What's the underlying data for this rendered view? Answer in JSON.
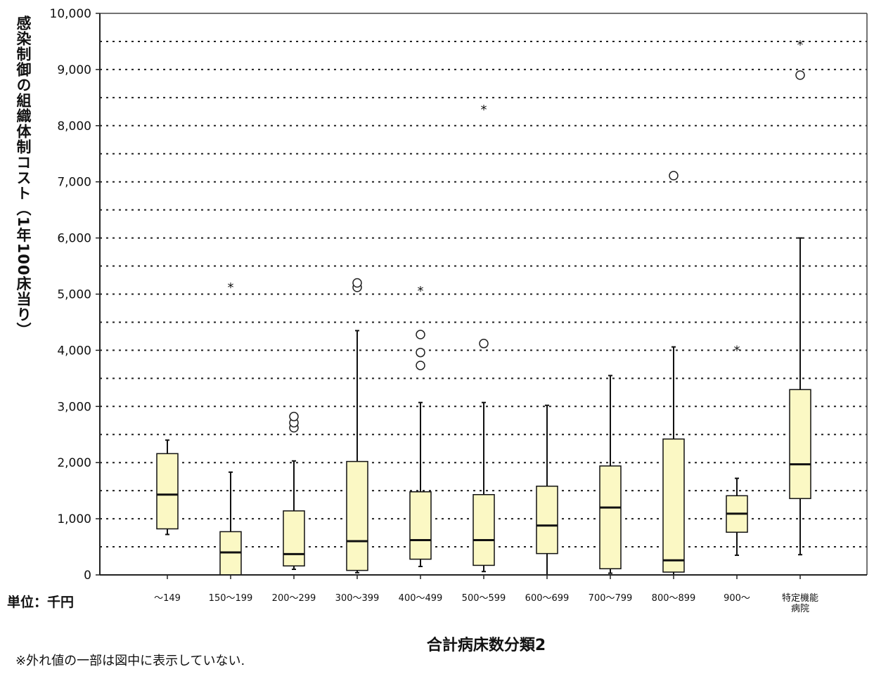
{
  "chart_data": {
    "type": "box",
    "ylabel": "感染制御の組織体制コスト（1年100床当り）",
    "xlabel": "合計病床数分類2",
    "unit_label": "単位：千円",
    "footnote": "※外れ値の一部は図中に表示していない.",
    "ylim": [
      0,
      10000
    ],
    "y_ticks": [
      "0",
      "1,000",
      "2,000",
      "3,000",
      "4,000",
      "5,000",
      "6,000",
      "7,000",
      "8,000",
      "9,000",
      "10,000"
    ],
    "y_tick_values": [
      0,
      1000,
      2000,
      3000,
      4000,
      5000,
      6000,
      7000,
      8000,
      9000,
      10000
    ],
    "grid": "dotted, every 500",
    "box_fill": "#fbf8c4",
    "categories": [
      [
        "～149"
      ],
      [
        "150～199"
      ],
      [
        "200～299"
      ],
      [
        "300～399"
      ],
      [
        "400～499"
      ],
      [
        "500～599"
      ],
      [
        "600～699"
      ],
      [
        "700～799"
      ],
      [
        "800～899"
      ],
      [
        "900～"
      ],
      [
        "特定機能",
        "病院"
      ]
    ],
    "boxes": [
      {
        "whisker_low": 720,
        "q1": 820,
        "median": 1430,
        "q3": 2160,
        "whisker_high": 2400,
        "outliers": [],
        "extremes": []
      },
      {
        "whisker_low": 0,
        "q1": 0,
        "median": 400,
        "q3": 770,
        "whisker_high": 1830,
        "outliers": [],
        "extremes": [
          5130
        ]
      },
      {
        "whisker_low": 100,
        "q1": 160,
        "median": 370,
        "q3": 1140,
        "whisker_high": 2030,
        "outliers": [
          2620,
          2710,
          2820
        ],
        "extremes": []
      },
      {
        "whisker_low": 40,
        "q1": 80,
        "median": 600,
        "q3": 2020,
        "whisker_high": 4350,
        "outliers": [
          5120,
          5200
        ],
        "extremes": []
      },
      {
        "whisker_low": 150,
        "q1": 280,
        "median": 620,
        "q3": 1480,
        "whisker_high": 3070,
        "outliers": [
          3730,
          3960,
          4280
        ],
        "extremes": [
          5070
        ]
      },
      {
        "whisker_low": 60,
        "q1": 170,
        "median": 620,
        "q3": 1430,
        "whisker_high": 3070,
        "outliers": [
          4120
        ],
        "extremes": [
          8300
        ]
      },
      {
        "whisker_low": 0,
        "q1": 380,
        "median": 880,
        "q3": 1580,
        "whisker_high": 3020,
        "outliers": [],
        "extremes": []
      },
      {
        "whisker_low": 30,
        "q1": 110,
        "median": 1200,
        "q3": 1940,
        "whisker_high": 3550,
        "outliers": [],
        "extremes": []
      },
      {
        "whisker_low": 0,
        "q1": 50,
        "median": 260,
        "q3": 2420,
        "whisker_high": 4060,
        "outliers": [
          7110
        ],
        "extremes": []
      },
      {
        "whisker_low": 350,
        "q1": 760,
        "median": 1090,
        "q3": 1410,
        "whisker_high": 1720,
        "outliers": [],
        "extremes": [
          4010
        ]
      },
      {
        "whisker_low": 360,
        "q1": 1360,
        "median": 1970,
        "q3": 3300,
        "whisker_high": 6000,
        "outliers": [
          8900
        ],
        "extremes": [
          9450
        ]
      }
    ]
  }
}
